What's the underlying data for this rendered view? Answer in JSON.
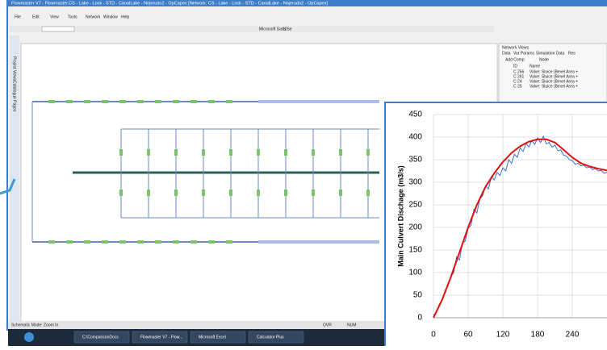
{
  "window": {
    "title": "Flowmaster V7 - Flowmaster.CS - Lake - Lock - STD - CanalLake - Nojerudo2 - OpCapex  [Network: CS - Lake - Lock - STD - CanalLake - Nojerudo2 - OpCapex]",
    "menus": [
      "File",
      "Edit",
      "View",
      "Tools",
      "Network",
      "Window",
      "Help"
    ],
    "font_box": "Microsoft Sans Se",
    "font_size": "10",
    "side_tabs": [
      "Project Views",
      "Catalogue Pages"
    ],
    "status": [
      "Schematic Mode: Zoom In",
      "OVR",
      "NUM"
    ]
  },
  "panel": {
    "title": "Network Views",
    "tabs": [
      "Data",
      "Var Params",
      "Simulation Data",
      "Res"
    ],
    "add_comp": "Add Comp",
    "node": "Node",
    "headers": [
      "ID",
      "Name"
    ],
    "rows": [
      [
        "C 256",
        "Valve: Sluice (Bevel Area +"
      ],
      [
        "C 261",
        "Valve: Sluice (Bevel Area +"
      ],
      [
        "C 24",
        "Valve: Sluice (Bevel Area +"
      ],
      [
        "C 25",
        "Valve: Sluice (Bevel Area +"
      ]
    ]
  },
  "taskbar": [
    "C:\\ComparisonDocs",
    "Flowmaster V7 - Flow...",
    "Microsoft Excel",
    "Calculator Plus"
  ],
  "chart_data": {
    "type": "line",
    "y_label": "Main Culvert Dischage (m3/s)",
    "xlim": [
      0,
      300
    ],
    "ylim": [
      0,
      450
    ],
    "xticks": [
      0,
      60,
      120,
      180,
      240
    ],
    "yticks": [
      0,
      50,
      100,
      150,
      200,
      250,
      300,
      350,
      400,
      450
    ],
    "grid": true,
    "series": [
      {
        "name": null,
        "color": "#3a6fc4",
        "x": [
          0,
          5,
          10,
          15,
          20,
          25,
          30,
          35,
          40,
          45,
          50,
          55,
          60,
          65,
          70,
          75,
          80,
          85,
          90,
          95,
          100,
          105,
          110,
          115,
          120,
          125,
          130,
          135,
          140,
          145,
          150,
          155,
          160,
          165,
          170,
          175,
          180,
          185,
          190,
          195,
          200,
          205,
          210,
          215,
          220,
          225,
          230,
          235,
          240,
          245,
          250,
          255,
          260,
          265,
          270,
          275,
          280,
          285,
          290,
          295,
          300
        ],
        "values": [
          5,
          12,
          30,
          38,
          60,
          70,
          92,
          100,
          135,
          128,
          165,
          170,
          198,
          205,
          240,
          232,
          262,
          270,
          292,
          285,
          312,
          305,
          322,
          315,
          332,
          325,
          350,
          342,
          362,
          355,
          376,
          368,
          386,
          378,
          392,
          384,
          398,
          388,
          402,
          385,
          388,
          378,
          382,
          370,
          372,
          360,
          358,
          350,
          348,
          340,
          342,
          336,
          338,
          332,
          334,
          328,
          330,
          325,
          326,
          320,
          322
        ]
      },
      {
        "name": null,
        "color": "#e01010",
        "x": [
          0,
          15,
          30,
          45,
          60,
          75,
          90,
          105,
          120,
          135,
          150,
          165,
          180,
          195,
          210,
          225,
          240,
          255,
          270,
          285,
          300
        ],
        "values": [
          0,
          40,
          90,
          145,
          200,
          250,
          290,
          320,
          345,
          365,
          380,
          390,
          395,
          395,
          388,
          372,
          355,
          342,
          335,
          330,
          326
        ]
      }
    ]
  }
}
